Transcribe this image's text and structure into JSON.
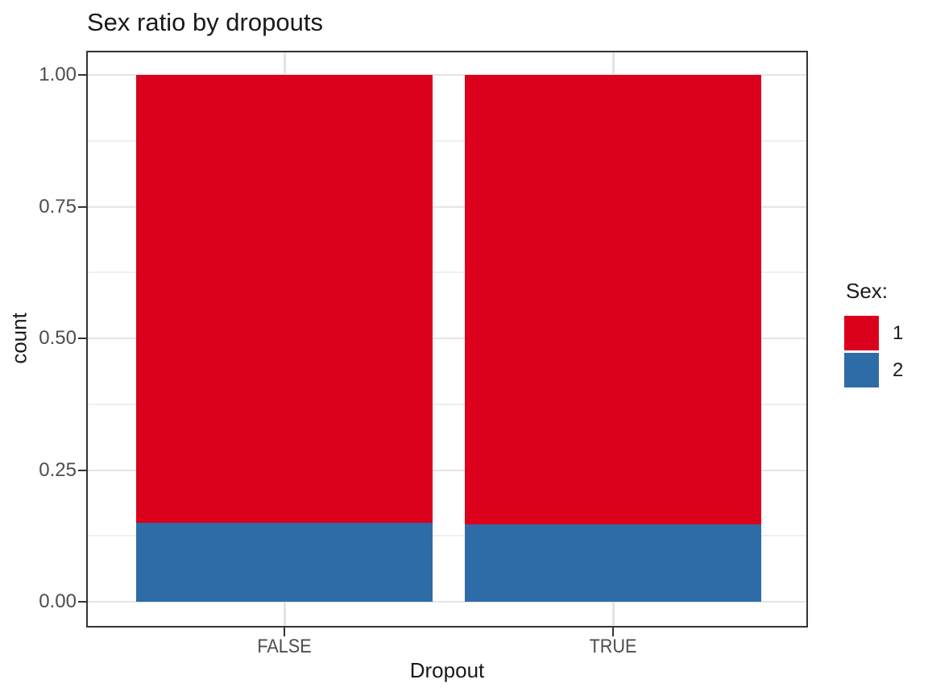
{
  "title": "Sex ratio by dropouts",
  "chart_data": {
    "type": "bar",
    "stacked": true,
    "orientation": "vertical",
    "title": "Sex ratio by dropouts",
    "xlabel": "Dropout",
    "ylabel": "count",
    "categories": [
      "FALSE",
      "TRUE"
    ],
    "series": [
      {
        "name": "1",
        "color": "#DB001B",
        "values": [
          0.85,
          0.853
        ]
      },
      {
        "name": "2",
        "color": "#2E6CA8",
        "values": [
          0.15,
          0.147
        ]
      }
    ],
    "stack_order_bottom_to_top": [
      "2",
      "1"
    ],
    "ylim": [
      0,
      1
    ],
    "yticks": [
      {
        "label": "0.00",
        "value": 0
      },
      {
        "label": "0.25",
        "value": 0.25
      },
      {
        "label": "0.50",
        "value": 0.5
      },
      {
        "label": "0.75",
        "value": 0.75
      },
      {
        "label": "1.00",
        "value": 1
      }
    ],
    "yminor": [
      0.125,
      0.375,
      0.625,
      0.875
    ],
    "grid": true,
    "legend_position": "right",
    "legend": {
      "title": "Sex:",
      "items": [
        {
          "label": "1",
          "color": "#DB001B"
        },
        {
          "label": "2",
          "color": "#2E6CA8"
        }
      ]
    }
  },
  "colors": {
    "series_1_red": "#DB001B",
    "series_2_blue": "#2E6CA8",
    "grid_major": "#E4E4E4",
    "grid_minor": "#EFEFEF",
    "panel_border": "#333333",
    "tick_label": "#4D4D4D",
    "background": "#FFFFFF"
  }
}
